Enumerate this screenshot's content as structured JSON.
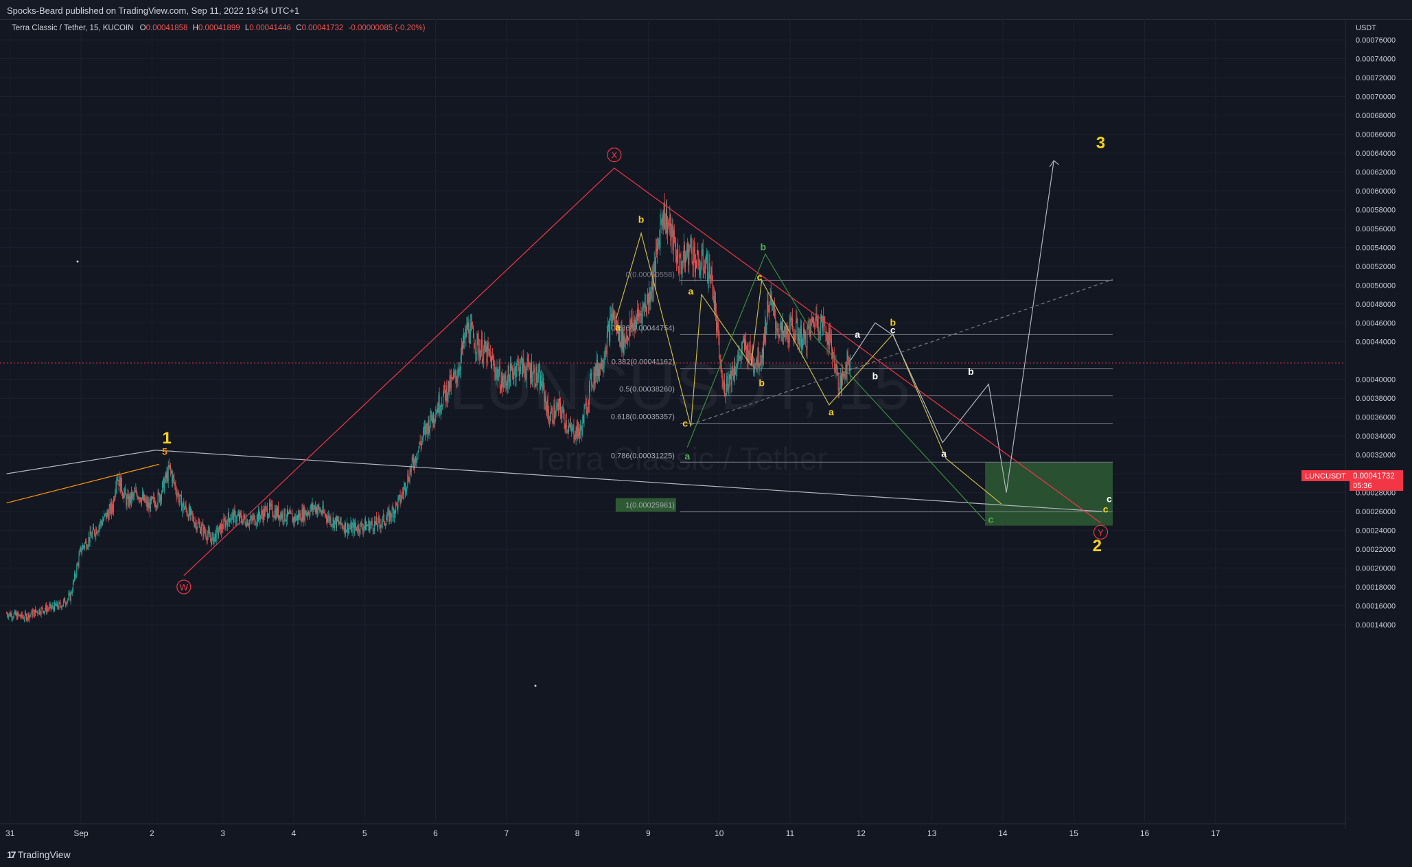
{
  "header": {
    "publisher_line": "Spocks-Beard published on TradingView.com, Sep 11, 2022 19:54 UTC+1"
  },
  "legend": {
    "symbol": "Terra Classic / Tether, 15, KUCOIN",
    "open_label": "O",
    "open": "0.00041858",
    "high_label": "H",
    "high": "0.00041899",
    "low_label": "L",
    "low": "0.00041446",
    "close_label": "C",
    "close": "0.00041732",
    "change": "-0.00000085 (-0.20%)"
  },
  "watermark": {
    "line1": "LUNCUSDT, 15",
    "line2": "Terra Classic / Tether"
  },
  "price_axis": {
    "unit": "USDT",
    "current_symbol": "LUNCUSDT",
    "current_price": "0.00041732",
    "countdown": "05:36"
  },
  "footer": {
    "brand": "TradingView"
  },
  "colors": {
    "background": "#131722",
    "candle_up": "#26a69a",
    "candle_down": "#ef5350",
    "wxy_line": "#f23645",
    "wave_yellow": "#c8b94a",
    "wave_green": "#388e3c",
    "wave_white": "#d1d4dc",
    "impulse_orange": "#ff9800",
    "target_zone": "#2e5a33",
    "count_label": "#f7d21e"
  },
  "chart_data": {
    "type": "candlestick",
    "title": "Terra Classic / Tether, 15, KUCOIN",
    "xlabel": "",
    "ylabel": "USDT",
    "ylim": [
      0.00013,
      0.00078
    ],
    "x_tick_labels": [
      "31",
      "Sep",
      "2",
      "3",
      "4",
      "5",
      "6",
      "7",
      "8",
      "9",
      "10",
      "11",
      "12",
      "13",
      "14",
      "15",
      "16",
      "17"
    ],
    "x_ticks_days": [
      -1,
      0,
      1,
      2,
      3,
      4,
      5,
      6,
      7,
      8,
      9,
      10,
      11,
      12,
      13,
      14,
      15,
      16
    ],
    "y_tick_labels": [
      "0.00014000",
      "0.00016000",
      "0.00018000",
      "0.00020000",
      "0.00022000",
      "0.00024000",
      "0.00026000",
      "0.00028000",
      "0.00030000",
      "0.00032000",
      "0.00034000",
      "0.00036000",
      "0.00038000",
      "0.00040000",
      "0.00044000",
      "0.00046000",
      "0.00048000",
      "0.00050000",
      "0.00052000",
      "0.00054000",
      "0.00056000",
      "0.00058000",
      "0.00060000",
      "0.00062000",
      "0.00064000",
      "0.00066000",
      "0.00068000",
      "0.00070000",
      "0.00072000",
      "0.00074000",
      "0.00076000"
    ],
    "y_ticks": [
      0.00014,
      0.00016,
      0.00018,
      0.0002,
      0.00022,
      0.00024,
      0.00026,
      0.00028,
      0.0003,
      0.00032,
      0.00034,
      0.00036,
      0.00038,
      0.0004,
      0.00044,
      0.00046,
      0.00048,
      0.0005,
      0.00052,
      0.00054,
      0.00056,
      0.00058,
      0.0006,
      0.00062,
      0.00064,
      0.00066,
      0.00068,
      0.0007,
      0.00072,
      0.00074,
      0.00076
    ],
    "price_path_days": [
      -1.05,
      -0.8,
      -0.6,
      -0.3,
      -0.15,
      0.0,
      0.2,
      0.45,
      0.5,
      0.65,
      0.8,
      0.95,
      1.1,
      1.25,
      1.4,
      1.6,
      1.85,
      2.1,
      2.4,
      2.65,
      3.0,
      3.3,
      3.55,
      3.8,
      4.0,
      4.2,
      4.35,
      4.5,
      4.65,
      4.85,
      5.05,
      5.3,
      5.45,
      5.6,
      5.75,
      5.95,
      6.15,
      6.35,
      6.5,
      6.6,
      6.75,
      6.9,
      7.05,
      7.2,
      7.35,
      7.5,
      7.55,
      7.65,
      7.75,
      7.85,
      8.0,
      8.1,
      8.2,
      8.3,
      8.45,
      8.6,
      8.7,
      8.8,
      8.9,
      9.05,
      9.2,
      9.35,
      9.5,
      9.6,
      9.7,
      9.8,
      9.9,
      10.05,
      10.2,
      10.35,
      10.5,
      10.6,
      10.7,
      10.75,
      10.8,
      10.85
    ],
    "price_path_values": [
      0.000152,
      0.000148,
      0.000155,
      0.00016,
      0.00017,
      0.00022,
      0.00024,
      0.000265,
      0.0003,
      0.00027,
      0.00028,
      0.000265,
      0.000275,
      0.000305,
      0.00027,
      0.00025,
      0.00023,
      0.000255,
      0.00025,
      0.000262,
      0.000252,
      0.000265,
      0.00025,
      0.000242,
      0.000245,
      0.000247,
      0.000255,
      0.000272,
      0.000305,
      0.000345,
      0.000375,
      0.000405,
      0.000455,
      0.000435,
      0.000425,
      0.000395,
      0.000415,
      0.00041,
      0.000395,
      0.00036,
      0.00037,
      0.000345,
      0.000345,
      0.0004,
      0.00042,
      0.00047,
      0.000455,
      0.00044,
      0.000455,
      0.000465,
      0.000485,
      0.00052,
      0.00058,
      0.00056,
      0.00052,
      0.00054,
      0.00052,
      0.000525,
      0.000505,
      0.00039,
      0.00041,
      0.000435,
      0.00042,
      0.000425,
      0.000485,
      0.00046,
      0.000445,
      0.000455,
      0.00044,
      0.000465,
      0.000455,
      0.00043,
      0.00039,
      0.000405,
      0.00042,
      0.000417
    ],
    "fibonacci": [
      {
        "label": "0.236(0.00044754)",
        "value": 0.00044754
      },
      {
        "label": "0.382(0.00041162)",
        "value": 0.00041162
      },
      {
        "label": "0.5(0.00038260)",
        "value": 0.0003826
      },
      {
        "label": "0.618(0.00035357)",
        "value": 0.00035357
      },
      {
        "label": "0.786(0.00031225)",
        "value": 0.00031225
      },
      {
        "label": "1(0.00025961)",
        "value": 0.00025961
      }
    ],
    "fib_top_value": 0.000505,
    "fib_top_label": "0(0.00050558)",
    "target_zone": {
      "x_start": 12.75,
      "x_end": 14.55,
      "y_low": 0.000245,
      "y_high": 0.000312
    },
    "current_price_value": 0.00041732,
    "projection_lines": {
      "wxy": [
        [
          1.45,
          0.000192
        ],
        [
          7.52,
          0.000624
        ],
        [
          14.38,
          0.000248
        ]
      ],
      "impulse_top": [
        [
          -1.05,
          0.0003
        ],
        [
          1.05,
          0.000325
        ],
        [
          14.4,
          0.00026
        ]
      ],
      "orange_trend": [
        [
          -1.05,
          0.000269
        ],
        [
          1.1,
          0.00031
        ]
      ],
      "wave_yellow_1": [
        [
          7.55,
          0.000465
        ],
        [
          7.9,
          0.000555
        ],
        [
          8.6,
          0.00035
        ],
        [
          8.75,
          0.00049
        ],
        [
          9.45,
          0.000415
        ],
        [
          9.6,
          0.000505
        ],
        [
          10.55,
          0.000373
        ],
        [
          11.45,
          0.000448
        ],
        [
          12.2,
          0.000316
        ],
        [
          12.98,
          0.000268
        ]
      ],
      "wave_green_1": [
        [
          8.55,
          0.000328
        ],
        [
          9.65,
          0.000533
        ],
        [
          10.35,
          0.000445
        ],
        [
          12.75,
          0.00025
        ]
      ],
      "wave_white_1": [
        [
          10.85,
          0.00042
        ],
        [
          11.2,
          0.00046
        ],
        [
          11.45,
          0.000447
        ],
        [
          12.15,
          0.000333
        ],
        [
          12.8,
          0.000395
        ],
        [
          13.05,
          0.00028
        ],
        [
          13.72,
          0.000632
        ]
      ],
      "dashed_trend": [
        [
          8.6,
          0.000352
        ],
        [
          14.55,
          0.000506
        ]
      ]
    },
    "wave_labels": [
      {
        "text": "1",
        "x": 1.21,
        "y": 0.000332,
        "color": "yellow",
        "size": "large"
      },
      {
        "text": "5",
        "x": 1.18,
        "y": 0.00032,
        "color": "orange",
        "size": "small"
      },
      {
        "text": "W",
        "x": 1.45,
        "y": 0.00018,
        "color": "red",
        "size": "circle"
      },
      {
        "text": "X",
        "x": 7.52,
        "y": 0.000638,
        "color": "red",
        "size": "circle"
      },
      {
        "text": "Y",
        "x": 14.38,
        "y": 0.000238,
        "color": "red",
        "size": "circle"
      },
      {
        "text": "2",
        "x": 14.33,
        "y": 0.000218,
        "color": "yellow",
        "size": "large"
      },
      {
        "text": "3",
        "x": 14.38,
        "y": 0.000645,
        "color": "yellow",
        "size": "large"
      },
      {
        "text": "a",
        "x": 7.57,
        "y": 0.000452,
        "color": "yellow",
        "size": "small"
      },
      {
        "text": "b",
        "x": 7.9,
        "y": 0.000566,
        "color": "yellow",
        "size": "small"
      },
      {
        "text": "c",
        "x": 8.52,
        "y": 0.00035,
        "color": "yellow",
        "size": "small"
      },
      {
        "text": "a",
        "x": 8.6,
        "y": 0.00049,
        "color": "yellow",
        "size": "small"
      },
      {
        "text": "b",
        "x": 9.62,
        "y": 0.000537,
        "color": "green",
        "size": "small"
      },
      {
        "text": "c",
        "x": 9.57,
        "y": 0.000505,
        "color": "yellow",
        "size": "small"
      },
      {
        "text": "a",
        "x": 8.55,
        "y": 0.000315,
        "color": "green",
        "size": "small"
      },
      {
        "text": "b",
        "x": 9.6,
        "y": 0.000393,
        "color": "yellow",
        "size": "small"
      },
      {
        "text": "a",
        "x": 10.58,
        "y": 0.000362,
        "color": "yellow",
        "size": "small"
      },
      {
        "text": "a",
        "x": 10.95,
        "y": 0.000444,
        "color": "white",
        "size": "small"
      },
      {
        "text": "b",
        "x": 11.45,
        "y": 0.000457,
        "color": "yellow",
        "size": "small"
      },
      {
        "text": "c",
        "x": 11.45,
        "y": 0.000449,
        "color": "white",
        "size": "small"
      },
      {
        "text": "b",
        "x": 11.2,
        "y": 0.0004,
        "color": "white",
        "size": "small"
      },
      {
        "text": "b",
        "x": 12.55,
        "y": 0.000405,
        "color": "white",
        "size": "small"
      },
      {
        "text": "a",
        "x": 12.17,
        "y": 0.000318,
        "color": "white",
        "size": "small"
      },
      {
        "text": "c",
        "x": 14.5,
        "y": 0.00027,
        "color": "white",
        "size": "small"
      },
      {
        "text": "c",
        "x": 14.45,
        "y": 0.000259,
        "color": "yellow",
        "size": "small"
      },
      {
        "text": "c",
        "x": 12.83,
        "y": 0.000248,
        "color": "green",
        "size": "small"
      }
    ]
  }
}
